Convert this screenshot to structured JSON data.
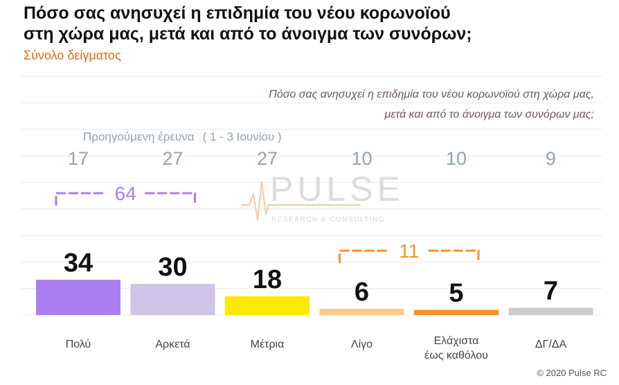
{
  "page": {
    "title_line1": "Πόσο σας ανησυχεί η επιδημία του νέου κορωνοϊού",
    "title_line2": "στη χώρα μας, μετά και από το άνοιγμα των συνόρων;",
    "subtitle": "Σύνολο δείγματος",
    "copyright": "© 2020 Pulse RC"
  },
  "watermark": {
    "main": "PULSE",
    "sub": "RESEARCH & CONSULTING"
  },
  "chart_data": {
    "type": "bar",
    "title": "Πόσο σας ανησυχεί η επιδημία του νέου κορωνοϊού στη χώρα μας, μετά και από το άνοιγμα των συνόρων;",
    "question_note_line1": "Πόσο σας ανησυχεί η επιδημία του νέου κορωνοϊού στη χώρα μας,",
    "question_note_line2": "μετά και από το άνοιγμα των συνόρων μας;",
    "categories": [
      [
        "Πολύ"
      ],
      [
        "Αρκετά"
      ],
      [
        "Μέτρια"
      ],
      [
        "Λίγο"
      ],
      [
        "Ελάχιστα",
        "έως καθόλου"
      ],
      [
        "ΔΓ/ΔΑ"
      ]
    ],
    "values": [
      34,
      30,
      18,
      6,
      5,
      7
    ],
    "colors": [
      "#a97ff0",
      "#cfc3e8",
      "#ffe900",
      "#fdc986",
      "#f7931e",
      "#cccccc"
    ],
    "previous_survey": {
      "label": "Προηγούμενη έρευνα",
      "period": "( 1 - 3 Ιουνίου )",
      "values": [
        17,
        27,
        27,
        10,
        10,
        9
      ]
    },
    "groups": [
      {
        "label": "64",
        "from": 0,
        "to": 1,
        "color": "#a97ff0"
      },
      {
        "label": "11",
        "from": 3,
        "to": 4,
        "color": "#f7931e"
      }
    ],
    "ylim": [
      0,
      100
    ],
    "grid": true,
    "xlabel": "",
    "ylabel": ""
  }
}
